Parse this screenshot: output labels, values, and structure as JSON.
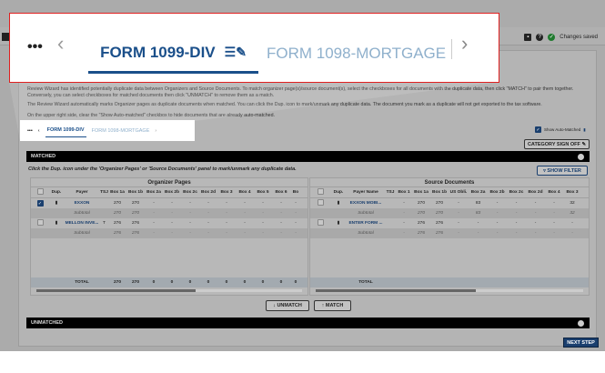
{
  "header": {
    "status": "Changes saved",
    "icons": [
      "comment-icon",
      "help-icon",
      "check-circle-icon"
    ]
  },
  "instructions": [
    "Review Wizard has identified potentially duplicate data between Organizers and Source Documents. To match organizer page(s)/source document(s), select the checkboxes for all documents with the duplicate data, then click \"MATCH\" to pair them together. Conversely, you can select checkboxes for matched documents then click \"UNMATCH\" to remove them as a match.",
    "The Review Wizard automatically marks Organizer pages as duplicate documents when matched. You can click the Dup. icon to mark/unmark any duplicate data. The document you mark as a duplicate will not get exported to the tax software.",
    "On the upper right side, clear the \"Show Auto-matched\" checkbox to hide documents that are already auto-matched."
  ],
  "tabs": [
    {
      "label": "FORM 1099-DIV",
      "active": true
    },
    {
      "label": "FORM 1098-MORTGAGE",
      "active": false
    }
  ],
  "more_label": "•••",
  "show_auto_matched": {
    "label": "Show Auto-Matched",
    "checked": true
  },
  "category_signoff": "CATEGORY SIGN OFF",
  "matched": {
    "title": "MATCHED",
    "instruction": "Click the Dup. icon under the 'Organizer Pages' or 'Source Documents' panel to mark/unmark any duplicate data.",
    "show_filter": "SHOW FILTER"
  },
  "organizer": {
    "title": "Organizer Pages",
    "columns": [
      "",
      "Dup.",
      "Payer",
      "TSJ",
      "Box 1a",
      "Box 1b",
      "Box 2a",
      "Box 2b",
      "Box 2c",
      "Box 2d",
      "Box 3",
      "Box 4",
      "Box 5",
      "Box 6",
      "Bo"
    ],
    "rows": [
      {
        "checked": true,
        "cells": [
          "",
          "",
          "EXXON",
          "",
          "270",
          "270",
          "-",
          "-",
          "-",
          "-",
          "-",
          "-",
          "-",
          "-",
          "-"
        ]
      },
      {
        "subtotal": true,
        "cells": [
          "",
          "",
          "Subtotal",
          "",
          "270",
          "270",
          "-",
          "-",
          "-",
          "-",
          "-",
          "-",
          "-",
          "-",
          "-"
        ]
      },
      {
        "checked": false,
        "cells": [
          "",
          "",
          "MELLON INVE...",
          "T",
          "276",
          "276",
          "-",
          "-",
          "-",
          "-",
          "-",
          "-",
          "-",
          "-",
          "-"
        ]
      },
      {
        "subtotal": true,
        "cells": [
          "",
          "",
          "Subtotal",
          "",
          "276",
          "276",
          "-",
          "-",
          "-",
          "-",
          "-",
          "-",
          "-",
          "-",
          "-"
        ]
      }
    ],
    "total": [
      "",
      "",
      "TOTAL",
      "",
      "270",
      "270",
      "0",
      "0",
      "0",
      "0",
      "0",
      "0",
      "0",
      "0",
      "0"
    ]
  },
  "source": {
    "title": "Source Documents",
    "columns": [
      "",
      "Dup.",
      "Payer Name",
      "TSJ",
      "Box 1",
      "Box 1a",
      "Box 1b",
      "US Obli.",
      "Box 2a",
      "Box 2b",
      "Box 2c",
      "Box 2d",
      "Box 4",
      "Box 3"
    ],
    "rows": [
      {
        "checked": false,
        "cells": [
          "",
          "",
          "EXXON MOBI...",
          "",
          "-",
          "270",
          "270",
          "-",
          "83",
          "-",
          "-",
          "-",
          "-",
          "32"
        ]
      },
      {
        "subtotal": true,
        "cells": [
          "",
          "",
          "Subtotal",
          "",
          "-",
          "270",
          "270",
          "-",
          "83",
          "-",
          "-",
          "-",
          "-",
          "32"
        ]
      },
      {
        "checked": false,
        "cells": [
          "",
          "",
          "ENTER FORM ...",
          "",
          "-",
          "276",
          "276",
          "-",
          "-",
          "-",
          "-",
          "-",
          "-",
          "-"
        ]
      },
      {
        "subtotal": true,
        "cells": [
          "",
          "",
          "Subtotal",
          "",
          "-",
          "276",
          "276",
          "-",
          "-",
          "-",
          "-",
          "-",
          "-",
          "-"
        ]
      }
    ],
    "total": [
      "",
      "",
      "TOTAL",
      "",
      "",
      "",
      "",
      "",
      "",
      "",
      "",
      "",
      "",
      ""
    ]
  },
  "unmatch": "UNMATCH",
  "match": "MATCH",
  "unmatched": {
    "title": "UNMATCHED"
  },
  "next_step": "NEXT STEP",
  "colors": {
    "brand": "#1a4f8a",
    "callout_border": "#e02020",
    "bar": "#000000"
  }
}
